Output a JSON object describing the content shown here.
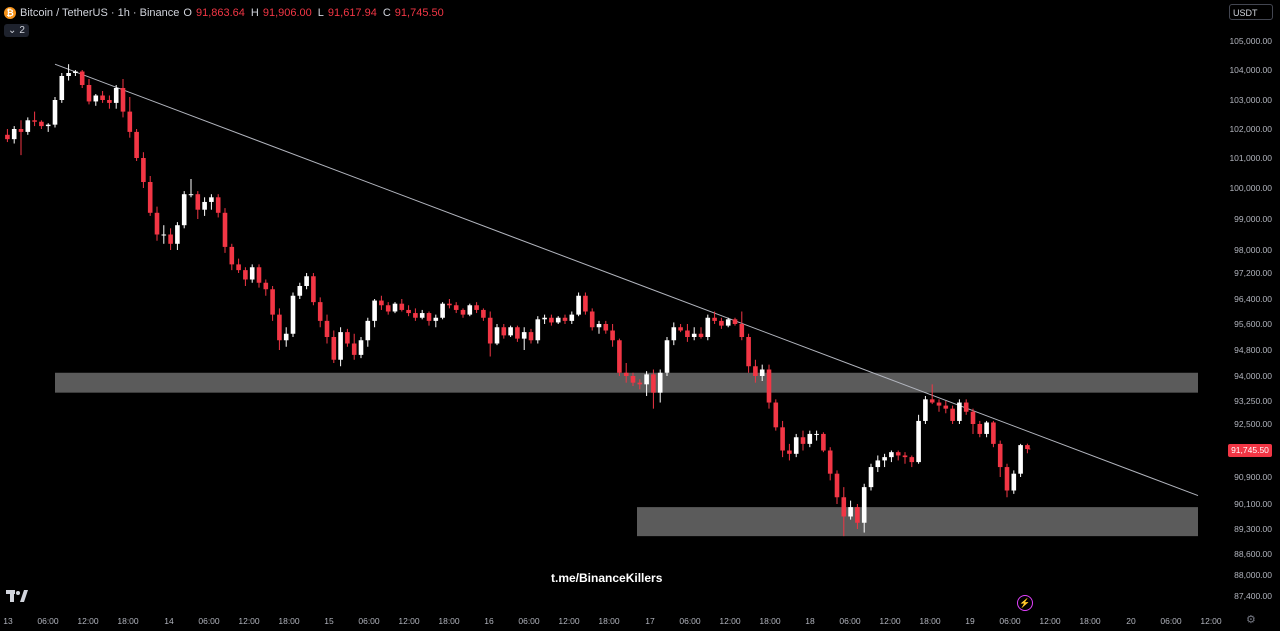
{
  "legend": {
    "symbol": "Bitcoin / TetherUS · 1h · Binance",
    "o_label": "O",
    "o_value": "91,863.64",
    "h_label": "H",
    "h_value": "91,906.00",
    "l_label": "L",
    "l_value": "91,617.94",
    "c_label": "C",
    "c_value": "91,745.50",
    "indicator_count": "2"
  },
  "currency": "USDT",
  "last_price": "91,745.50",
  "watermark": "t.me/BinanceKillers",
  "colors": {
    "background": "#000000",
    "up": "#ffffff",
    "down": "#f23645",
    "zone": "#6b6b6b",
    "trendline": "#b2b5be",
    "axis_text": "#b2b5be"
  },
  "chart_data": {
    "type": "candlestick",
    "interval": "1h",
    "y_ticks": [
      "105,000.00",
      "104,000.00",
      "103,000.00",
      "102,000.00",
      "101,000.00",
      "100,000.00",
      "99,000.00",
      "98,000.00",
      "97,200.00",
      "96,400.00",
      "95,600.00",
      "94,800.00",
      "94,000.00",
      "93,250.00",
      "92,500.00",
      "90,900.00",
      "90,100.00",
      "89,300.00",
      "88,600.00",
      "88,000.00",
      "87,400.00"
    ],
    "x_ticks": [
      "13",
      "06:00",
      "12:00",
      "18:00",
      "14",
      "06:00",
      "12:00",
      "18:00",
      "15",
      "06:00",
      "12:00",
      "18:00",
      "16",
      "06:00",
      "12:00",
      "18:00",
      "17",
      "06:00",
      "12:00",
      "18:00",
      "18",
      "06:00",
      "12:00",
      "18:00",
      "19",
      "06:00",
      "12:00",
      "18:00",
      "20",
      "06:00",
      "12:00"
    ],
    "zones": [
      {
        "from": 93500,
        "to": 94100
      },
      {
        "from": 89100,
        "to": 90000
      }
    ],
    "trendline": {
      "start": 104200,
      "end": 90350
    },
    "candles": [
      [
        101800,
        102000,
        101550,
        101650
      ],
      [
        101650,
        102100,
        101500,
        102000
      ],
      [
        102000,
        102300,
        101100,
        101900
      ],
      [
        101900,
        102400,
        101800,
        102300
      ],
      [
        102300,
        102600,
        102100,
        102250
      ],
      [
        102250,
        102300,
        102000,
        102100
      ],
      [
        102100,
        102200,
        101900,
        102150
      ],
      [
        102150,
        103100,
        102050,
        103000
      ],
      [
        103000,
        103900,
        102900,
        103800
      ],
      [
        103800,
        104200,
        103650,
        103900
      ],
      [
        103900,
        104000,
        103800,
        103950
      ],
      [
        103950,
        104000,
        103400,
        103500
      ],
      [
        103500,
        103700,
        102850,
        102950
      ],
      [
        102950,
        103200,
        102800,
        103150
      ],
      [
        103150,
        103300,
        102900,
        103000
      ],
      [
        103000,
        103150,
        102700,
        102900
      ],
      [
        102900,
        103500,
        102700,
        103400
      ],
      [
        103400,
        103700,
        102400,
        102600
      ],
      [
        102600,
        103100,
        101700,
        101900
      ],
      [
        101900,
        102000,
        100900,
        101000
      ],
      [
        101000,
        101200,
        100000,
        100200
      ],
      [
        100200,
        100400,
        99100,
        99200
      ],
      [
        99200,
        99400,
        98300,
        98500
      ],
      [
        98500,
        98800,
        98200,
        98500
      ],
      [
        98500,
        98700,
        98000,
        98200
      ],
      [
        98200,
        98900,
        98000,
        98800
      ],
      [
        98800,
        99900,
        98700,
        99800
      ],
      [
        99800,
        100300,
        99700,
        99800
      ],
      [
        99800,
        99900,
        99000,
        99300
      ],
      [
        99300,
        99700,
        99100,
        99550
      ],
      [
        99550,
        99800,
        99300,
        99700
      ],
      [
        99700,
        99800,
        99050,
        99200
      ],
      [
        99200,
        99350,
        97900,
        98100
      ],
      [
        98100,
        98200,
        97300,
        97500
      ],
      [
        97500,
        97700,
        97200,
        97300
      ],
      [
        97300,
        97400,
        96800,
        97000
      ],
      [
        97000,
        97500,
        96900,
        97400
      ],
      [
        97400,
        97500,
        96750,
        96900
      ],
      [
        96900,
        97000,
        96500,
        96700
      ],
      [
        96700,
        96800,
        95700,
        95900
      ],
      [
        95900,
        96100,
        94800,
        95100
      ],
      [
        95100,
        95500,
        94900,
        95300
      ],
      [
        95300,
        96600,
        95200,
        96500
      ],
      [
        96500,
        96900,
        96400,
        96800
      ],
      [
        96800,
        97200,
        96700,
        97100
      ],
      [
        97100,
        97200,
        96200,
        96300
      ],
      [
        96300,
        96450,
        95500,
        95700
      ],
      [
        95700,
        95900,
        95000,
        95200
      ],
      [
        95200,
        95400,
        94400,
        94500
      ],
      [
        94500,
        95500,
        94300,
        95350
      ],
      [
        95350,
        95450,
        94900,
        95000
      ],
      [
        95000,
        95300,
        94500,
        94650
      ],
      [
        94650,
        95200,
        94550,
        95100
      ],
      [
        95100,
        95800,
        94900,
        95700
      ],
      [
        95700,
        96400,
        95500,
        96350
      ],
      [
        96350,
        96500,
        96050,
        96200
      ],
      [
        96200,
        96300,
        95900,
        96000
      ],
      [
        96000,
        96300,
        95950,
        96250
      ],
      [
        96250,
        96400,
        96000,
        96050
      ],
      [
        96050,
        96200,
        95850,
        95950
      ],
      [
        95950,
        96100,
        95700,
        95800
      ],
      [
        95800,
        96050,
        95750,
        95950
      ],
      [
        95950,
        96000,
        95550,
        95700
      ],
      [
        95700,
        95900,
        95500,
        95800
      ],
      [
        95800,
        96300,
        95750,
        96250
      ],
      [
        96250,
        96400,
        96100,
        96200
      ],
      [
        96200,
        96300,
        95950,
        96050
      ],
      [
        96050,
        96100,
        95800,
        95900
      ],
      [
        95900,
        96250,
        95850,
        96200
      ],
      [
        96200,
        96300,
        95950,
        96050
      ],
      [
        96050,
        96100,
        95700,
        95800
      ],
      [
        95800,
        96000,
        94600,
        95000
      ],
      [
        95000,
        95600,
        94950,
        95500
      ],
      [
        95500,
        95600,
        95150,
        95250
      ],
      [
        95250,
        95550,
        95200,
        95500
      ],
      [
        95500,
        95550,
        95050,
        95150
      ],
      [
        95150,
        95500,
        94800,
        95350
      ],
      [
        95350,
        95450,
        95000,
        95100
      ],
      [
        95100,
        95850,
        95000,
        95750
      ],
      [
        95750,
        95900,
        95600,
        95800
      ],
      [
        95800,
        95900,
        95550,
        95650
      ],
      [
        95650,
        95850,
        95600,
        95800
      ],
      [
        95800,
        95900,
        95600,
        95700
      ],
      [
        95700,
        96000,
        95600,
        95900
      ],
      [
        95900,
        96600,
        95850,
        96500
      ],
      [
        96500,
        96600,
        95900,
        96000
      ],
      [
        96000,
        96100,
        95400,
        95500
      ],
      [
        95500,
        95700,
        95300,
        95600
      ],
      [
        95600,
        95700,
        95300,
        95400
      ],
      [
        95400,
        95600,
        94900,
        95100
      ],
      [
        95100,
        95150,
        94000,
        94100
      ],
      [
        94100,
        94400,
        93800,
        94000
      ],
      [
        94000,
        94100,
        93700,
        93800
      ],
      [
        93800,
        93900,
        93600,
        93750
      ],
      [
        93750,
        94150,
        93400,
        94050
      ],
      [
        94050,
        94200,
        93000,
        93500
      ],
      [
        93500,
        94200,
        93200,
        94100
      ],
      [
        94100,
        95200,
        94000,
        95100
      ],
      [
        95100,
        95650,
        94950,
        95500
      ],
      [
        95500,
        95600,
        95350,
        95400
      ],
      [
        95400,
        95600,
        95050,
        95200
      ],
      [
        95200,
        95500,
        95100,
        95300
      ],
      [
        95300,
        95500,
        95150,
        95200
      ],
      [
        95200,
        95900,
        95100,
        95800
      ],
      [
        95800,
        96000,
        95600,
        95700
      ],
      [
        95700,
        95800,
        95450,
        95550
      ],
      [
        95550,
        95800,
        95500,
        95750
      ],
      [
        95750,
        95800,
        95550,
        95600
      ],
      [
        95600,
        96000,
        95100,
        95200
      ],
      [
        95200,
        95300,
        94100,
        94300
      ],
      [
        94300,
        94500,
        93800,
        94000
      ],
      [
        94000,
        94350,
        93850,
        94200
      ],
      [
        94200,
        94350,
        93000,
        93200
      ],
      [
        93200,
        93300,
        92300,
        92400
      ],
      [
        92400,
        92600,
        91500,
        91700
      ],
      [
        91700,
        91900,
        91400,
        91600
      ],
      [
        91600,
        92200,
        91500,
        92100
      ],
      [
        92100,
        92300,
        91700,
        91900
      ],
      [
        91900,
        92300,
        91800,
        92200
      ],
      [
        92200,
        92300,
        92000,
        92200
      ],
      [
        92200,
        92250,
        91650,
        91700
      ],
      [
        91700,
        91800,
        90800,
        91000
      ],
      [
        91000,
        91100,
        90100,
        90300
      ],
      [
        90300,
        90600,
        89100,
        89700
      ],
      [
        89700,
        90200,
        89600,
        90000
      ],
      [
        90000,
        90100,
        89300,
        89500
      ],
      [
        89500,
        90700,
        89200,
        90600
      ],
      [
        90600,
        91300,
        90500,
        91200
      ],
      [
        91200,
        91550,
        91050,
        91400
      ],
      [
        91400,
        91600,
        91200,
        91500
      ],
      [
        91500,
        91700,
        91350,
        91650
      ],
      [
        91650,
        91700,
        91400,
        91550
      ],
      [
        91550,
        91650,
        91300,
        91500
      ],
      [
        91500,
        91550,
        91200,
        91350
      ],
      [
        91350,
        92800,
        91300,
        92600
      ],
      [
        92600,
        93400,
        92500,
        93300
      ],
      [
        93300,
        93750,
        93150,
        93200
      ],
      [
        93200,
        93300,
        92900,
        93100
      ],
      [
        93100,
        93250,
        92850,
        93000
      ],
      [
        93000,
        93100,
        92500,
        92600
      ],
      [
        92600,
        93300,
        92500,
        93200
      ],
      [
        93200,
        93300,
        92800,
        92900
      ],
      [
        92900,
        93000,
        92200,
        92500
      ],
      [
        92500,
        92600,
        92100,
        92200
      ],
      [
        92200,
        92600,
        92100,
        92550
      ],
      [
        92550,
        92600,
        91800,
        91900
      ],
      [
        91900,
        92000,
        90900,
        91200
      ],
      [
        91200,
        91300,
        90300,
        90500
      ],
      [
        90500,
        91100,
        90400,
        91000
      ],
      [
        91000,
        91900,
        90900,
        91863
      ],
      [
        91863,
        91906,
        91617,
        91745
      ]
    ]
  }
}
